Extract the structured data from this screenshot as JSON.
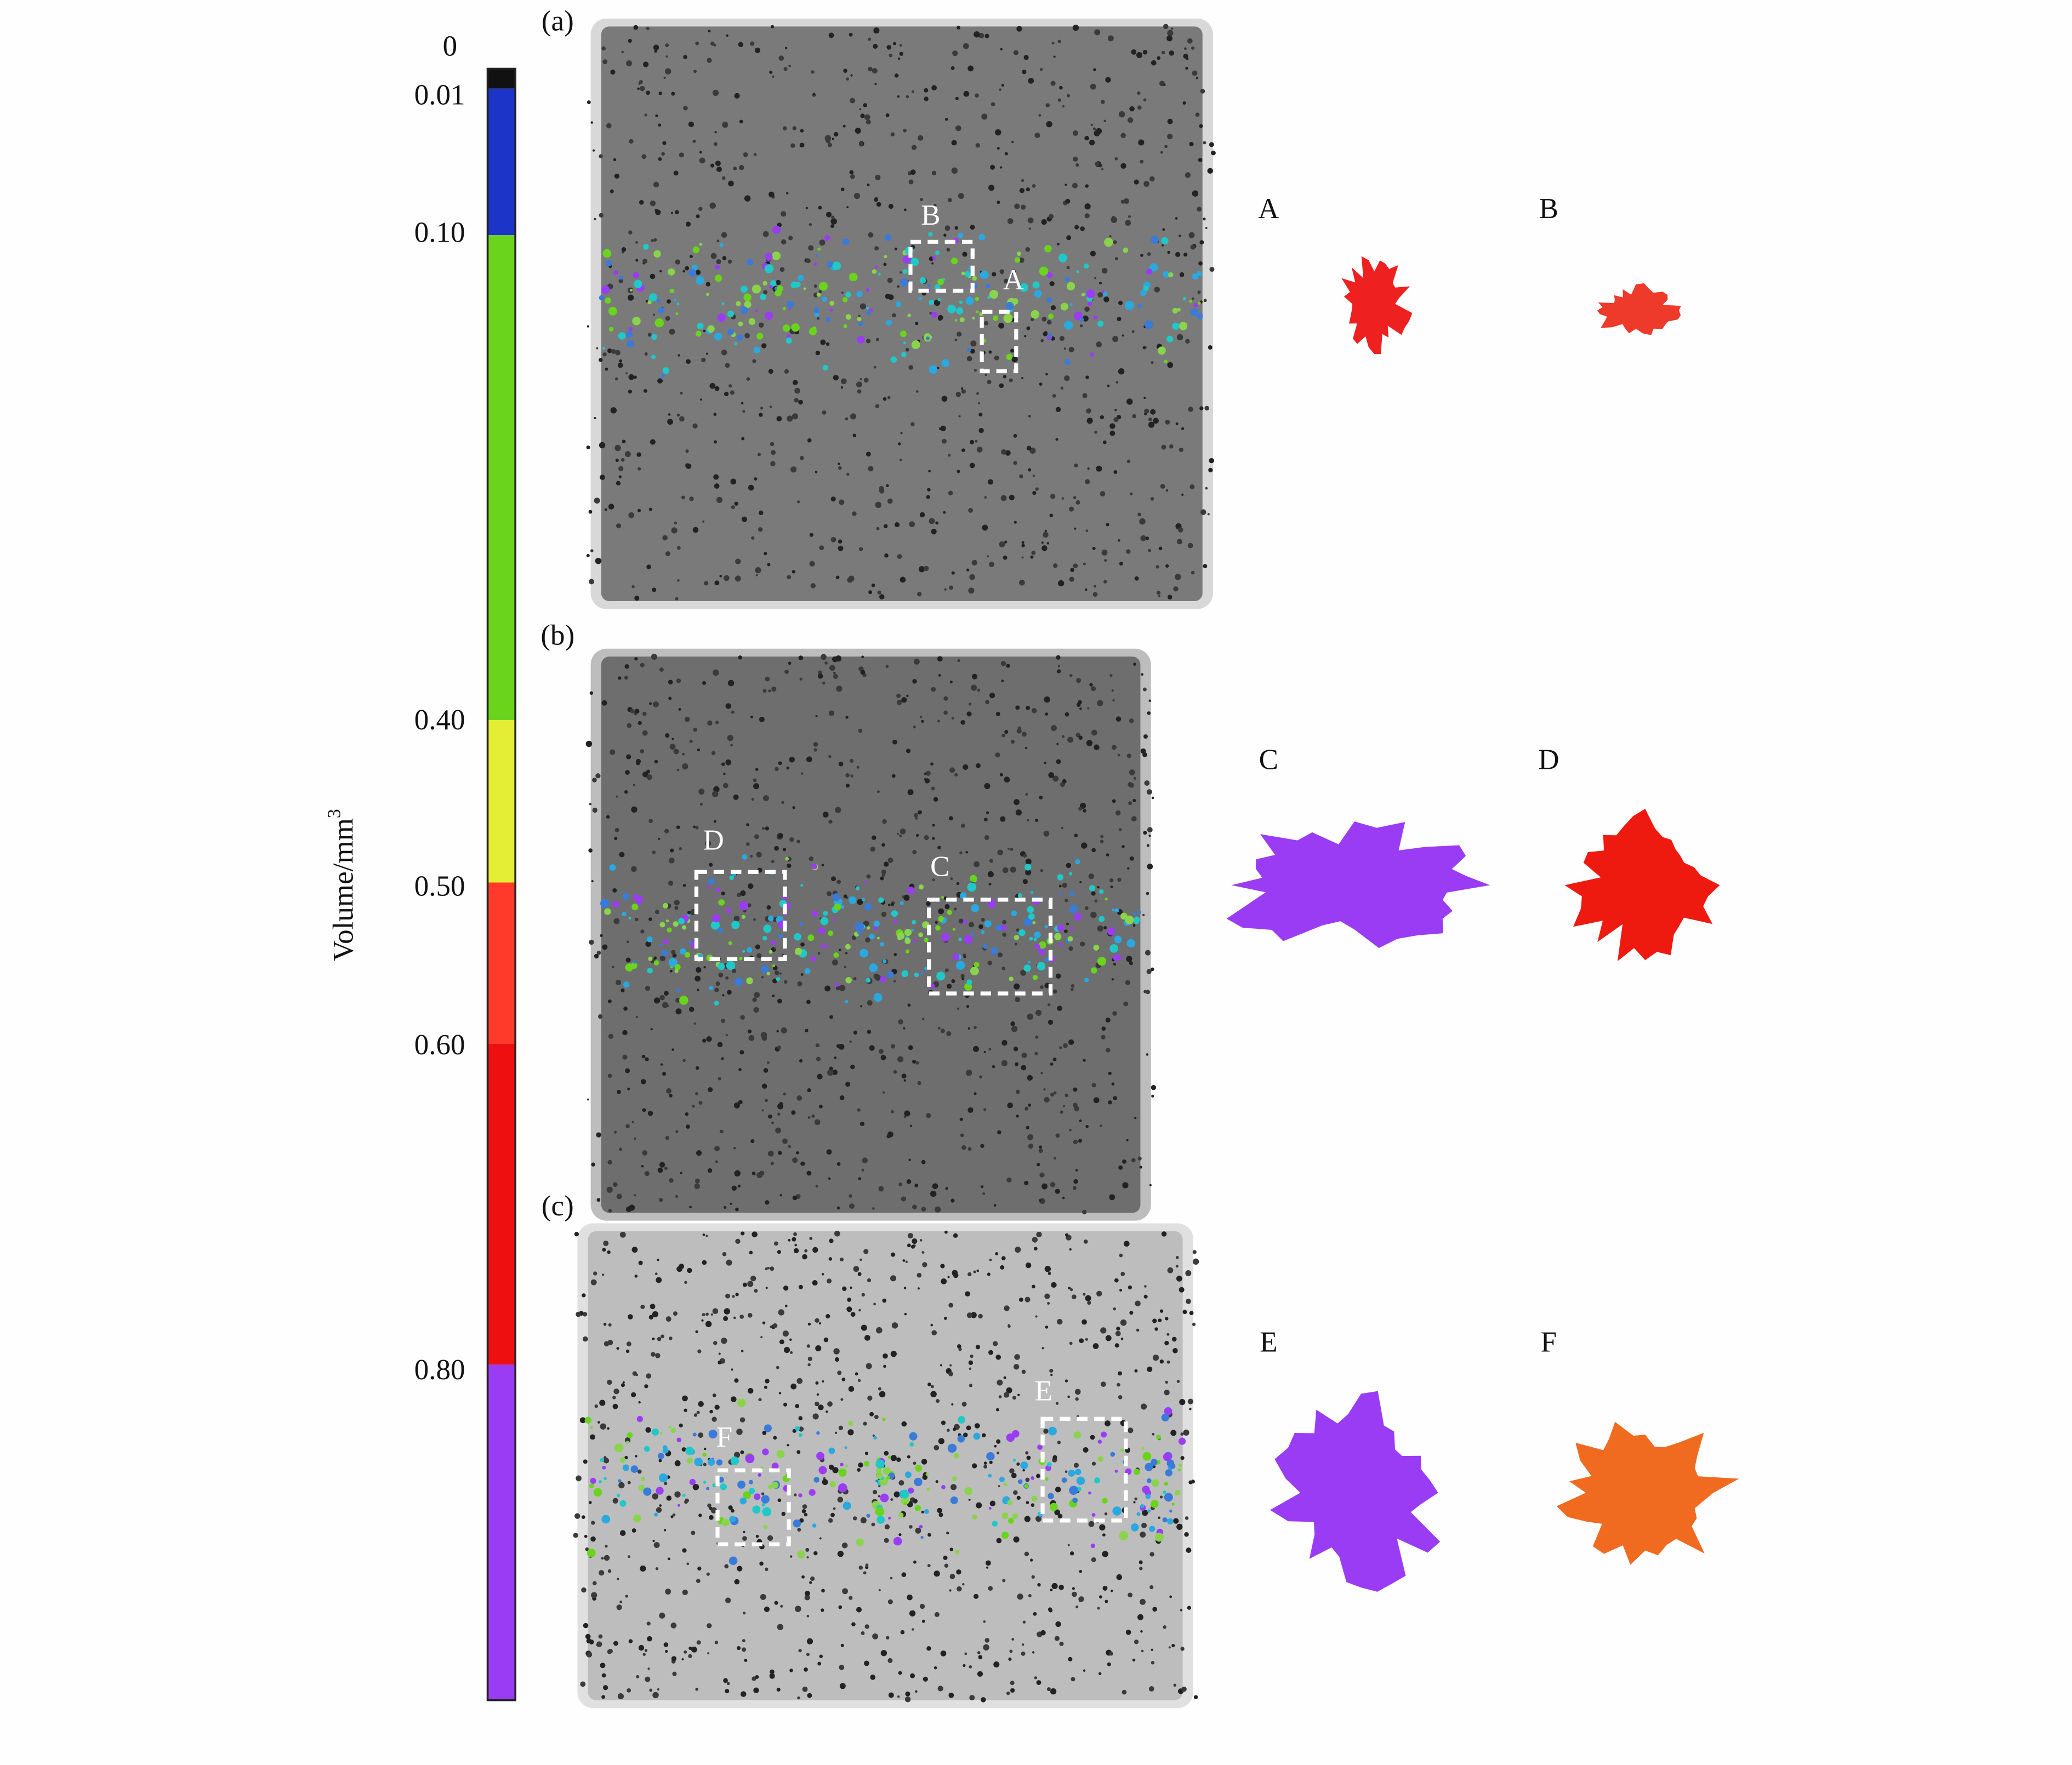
{
  "colorbar": {
    "ticks": [
      "0",
      "0.01",
      "0.10",
      "0.40",
      "0.50",
      "0.60",
      "0.80"
    ],
    "label": "Volume/mm",
    "label_sup": "3"
  },
  "panels": [
    {
      "label": "(a)",
      "boxes": [
        "B",
        "A"
      ],
      "insets": [
        "A",
        "B"
      ]
    },
    {
      "label": "(b)",
      "boxes": [
        "D",
        "C"
      ],
      "insets": [
        "C",
        "D"
      ]
    },
    {
      "label": "(c)",
      "boxes": [
        "F",
        "E"
      ],
      "insets": [
        "E",
        "F"
      ]
    }
  ]
}
